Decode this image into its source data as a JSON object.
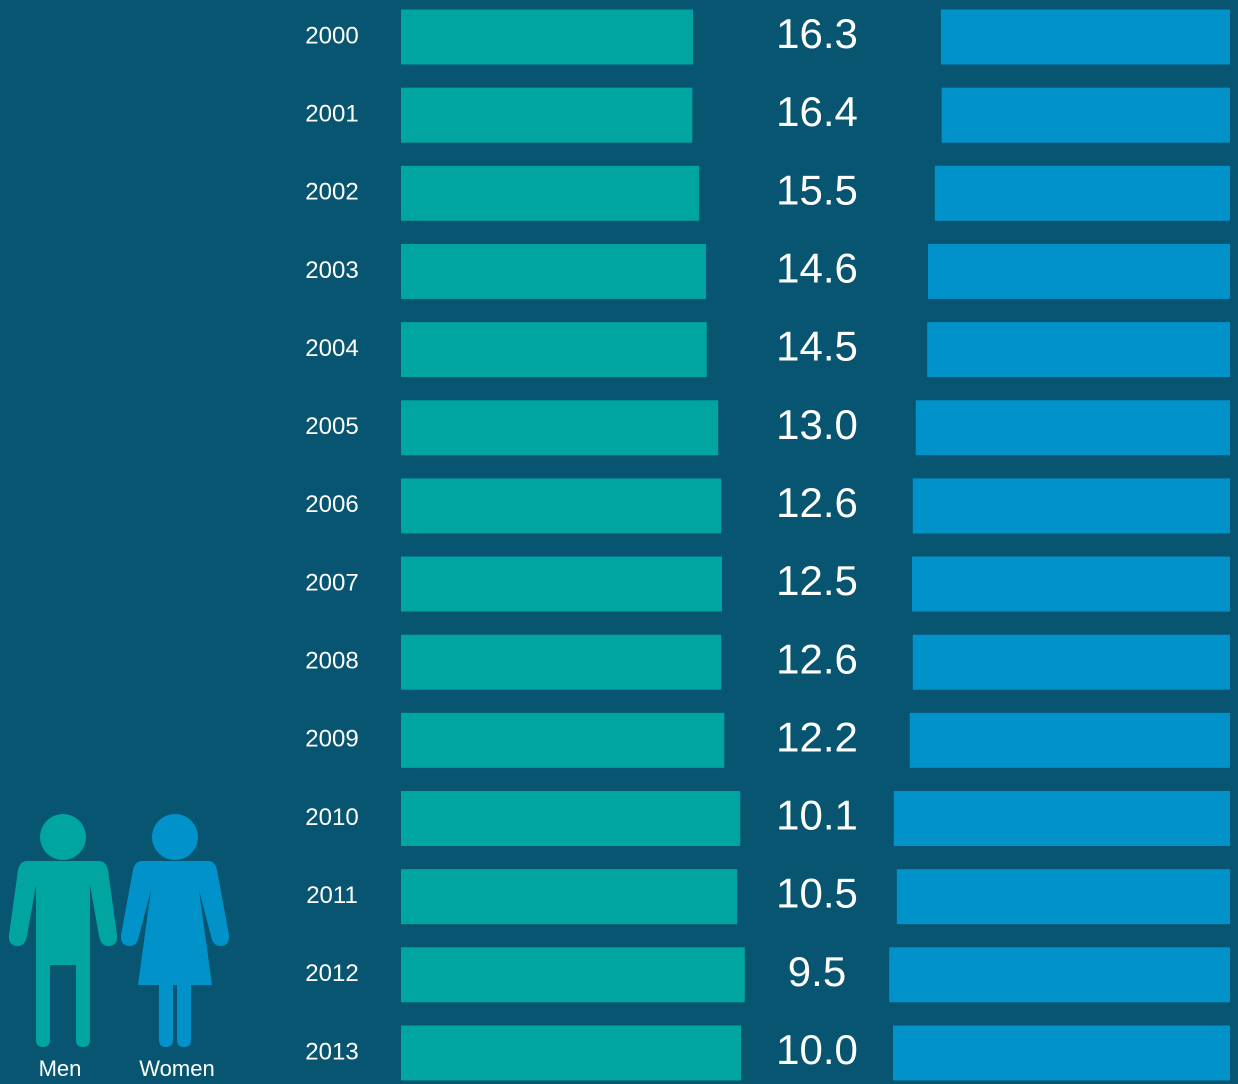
{
  "chart_data": {
    "type": "bar",
    "categories": [
      "2000",
      "2001",
      "2002",
      "2003",
      "2004",
      "2005",
      "2006",
      "2007",
      "2008",
      "2009",
      "2010",
      "2011",
      "2012",
      "2013"
    ],
    "values": [
      16.3,
      16.4,
      15.5,
      14.6,
      14.5,
      13.0,
      12.6,
      12.5,
      12.6,
      12.2,
      10.1,
      10.5,
      9.5,
      10.0
    ],
    "value_labels": [
      "16.3",
      "16.4",
      "15.5",
      "14.6",
      "14.5",
      "13.0",
      "12.6",
      "12.5",
      "12.6",
      "12.2",
      "10.1",
      "10.5",
      "9.5",
      "10.0"
    ],
    "legend": [
      {
        "name": "Men",
        "color": "#00a4a1"
      },
      {
        "name": "Women",
        "color": "#0092c9"
      }
    ]
  }
}
